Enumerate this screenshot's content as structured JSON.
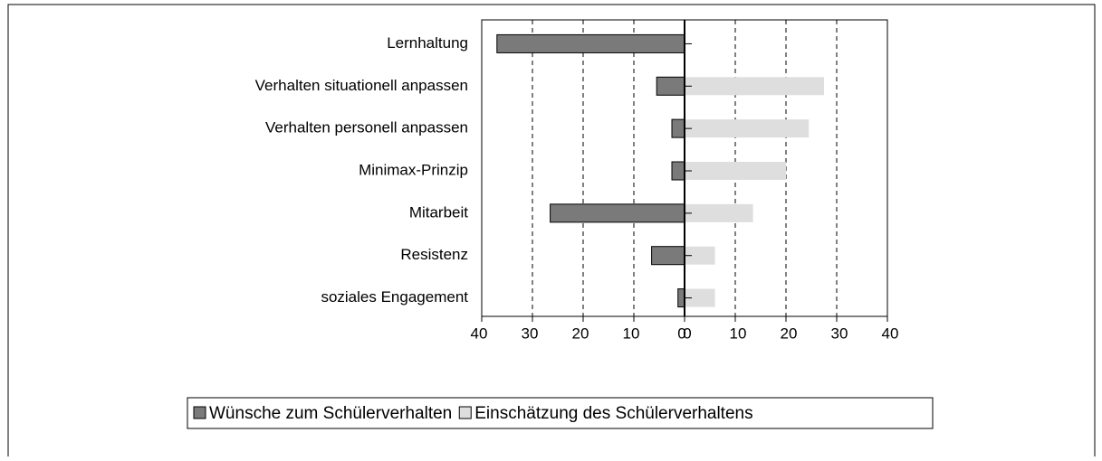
{
  "chart_data": {
    "type": "diverging-bar",
    "categories": [
      "Lernhaltung",
      "Verhalten situationell anpassen",
      "Verhalten personell anpassen",
      "Minimax-Prinzip",
      "Mitarbeit",
      "Resistenz",
      "soziales Engagement"
    ],
    "series": [
      {
        "name": "Wünsche zum Schülerverhalten",
        "color": "#7a7a7a",
        "axis": "x",
        "values": [
          37,
          5.5,
          2.5,
          2.5,
          26.5,
          6.5,
          1.3
        ]
      },
      {
        "name": "Einschätzung des Schülerverhaltens",
        "color": "#dedede",
        "axis": "x2",
        "values": [
          0,
          27.5,
          24.5,
          20,
          13.5,
          6,
          6
        ]
      }
    ],
    "xlim": [
      40,
      0
    ],
    "xticks": [
      40,
      30,
      20,
      10,
      0
    ],
    "x2lim": [
      0,
      40
    ],
    "x2ticks": [
      0,
      10,
      20,
      30,
      40
    ],
    "grid": true,
    "legend": "bottom"
  }
}
